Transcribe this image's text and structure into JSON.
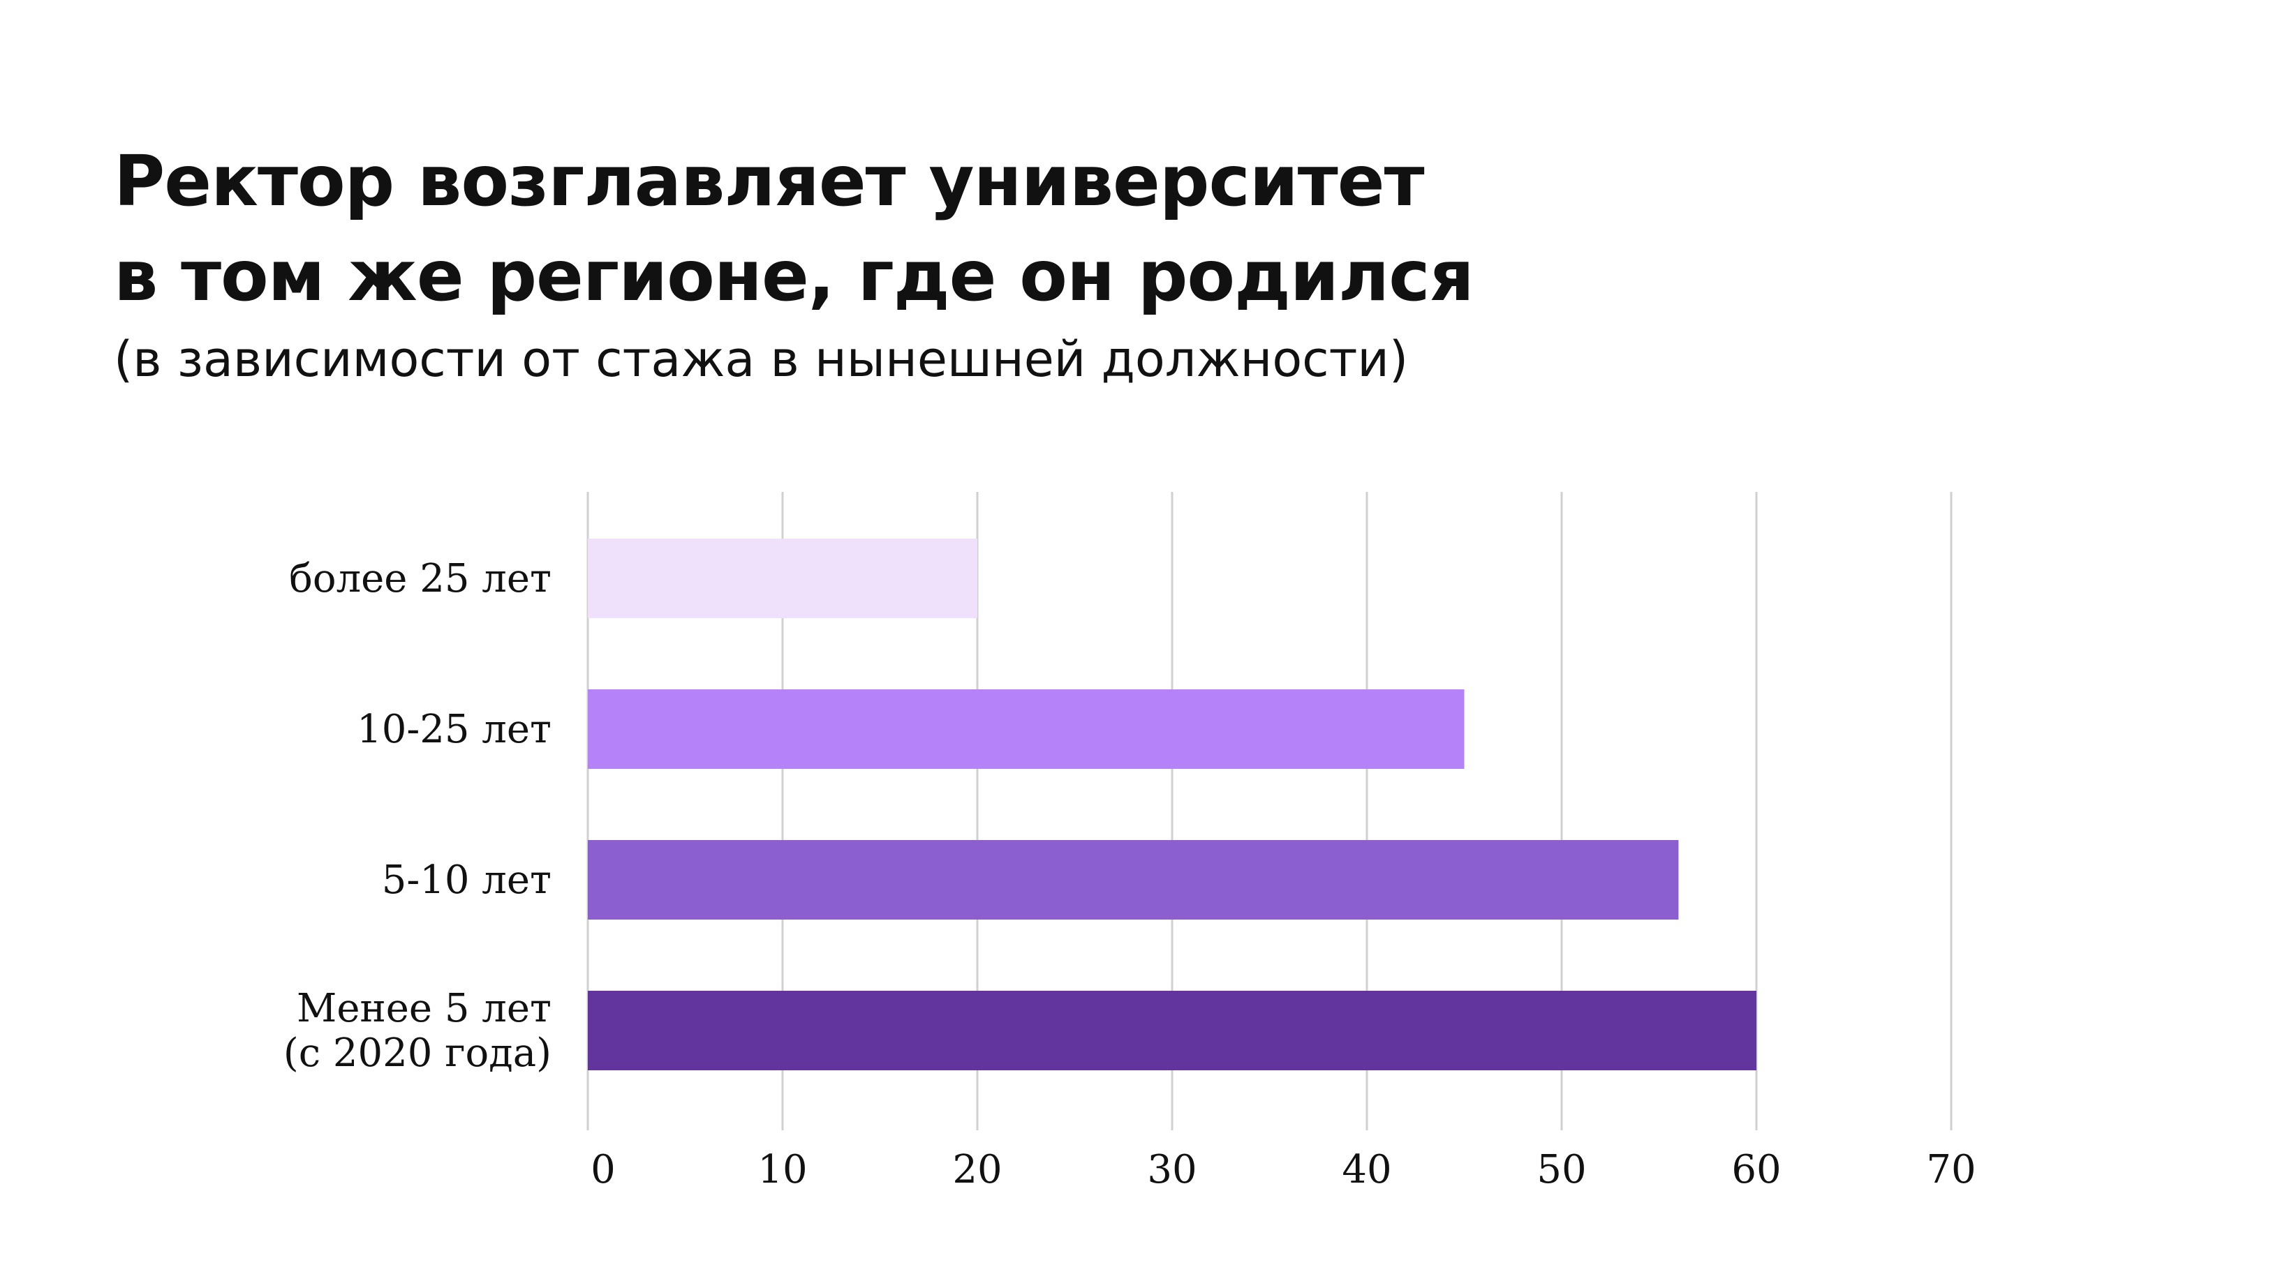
{
  "title_lines": [
    "Ректор возглавляет университет",
    "в том же регионе, где он родился"
  ],
  "subtitle": "(в зависимости от стажа в нынешней должности)",
  "chart_data": {
    "type": "bar",
    "orientation": "horizontal",
    "title": "Ректор возглавляет университет в том же регионе, где он родился",
    "subtitle": "(в зависимости от стажа в нынешней должности)",
    "categories": [
      [
        "более 25 лет"
      ],
      [
        "10-25 лет"
      ],
      [
        "5-10 лет"
      ],
      [
        "Менее 5 лет",
        "(с 2020 года)"
      ]
    ],
    "values": [
      20,
      45,
      56,
      60
    ],
    "colors": [
      "#efe0fc",
      "#b682fa",
      "#8c5fd0",
      "#62359e"
    ],
    "xlim": [
      0,
      70
    ],
    "xticks": [
      0,
      10,
      20,
      30,
      40,
      50,
      60,
      70
    ],
    "grid": true,
    "gridColor": "#d0d0d0",
    "legend": "none"
  }
}
